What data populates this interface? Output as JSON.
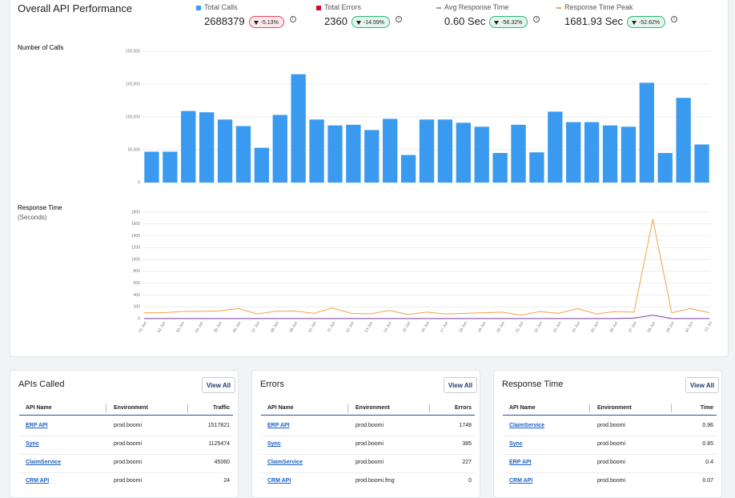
{
  "header": {
    "title": "Overall API Performance"
  },
  "kpis": [
    {
      "label": "Total Calls",
      "value": "2688379",
      "change": "-5.13%",
      "color": "#3a9af0",
      "marker": "square",
      "badge_color": "#e5485f"
    },
    {
      "label": "Total Errors",
      "value": "2360",
      "change": "-14.59%",
      "color": "#c8102e",
      "marker": "square",
      "badge_color": "#2bb673"
    },
    {
      "label": "Avg Response Time",
      "value": "0.60 Sec",
      "change": "-56.32%",
      "color": "#9a9a9a",
      "marker": "dash",
      "badge_color": "#2bb673"
    },
    {
      "label": "Response Time Peak",
      "value": "1681.93 Sec",
      "change": "-52.62%",
      "color": "#f5a04a",
      "marker": "dash",
      "badge_color": "#2bb673"
    }
  ],
  "chart_data": [
    {
      "type": "bar",
      "y_label": "Number of Calls",
      "color": "#3a9af0",
      "values": [
        47000,
        47000,
        109000,
        107000,
        96000,
        86000,
        53000,
        103000,
        165000,
        96000,
        87000,
        88000,
        80000,
        97000,
        42000,
        96000,
        96000,
        91000,
        85000,
        45000,
        88000,
        46000,
        108000,
        92000,
        92000,
        87000,
        85000,
        152000,
        45000,
        129000,
        58000
      ],
      "ylim": [
        0,
        200000
      ],
      "yticks": [
        0,
        {
          "value": 50000,
          "label": "50,000"
        },
        {
          "value": 100000,
          "label": "100,000"
        },
        {
          "value": 150000,
          "label": "150,000"
        },
        {
          "value": 200000,
          "label": "200,000"
        }
      ],
      "grid": true
    },
    {
      "type": "line",
      "y_label": "Response Time",
      "y_label_sub": "(Seconds)",
      "categories": [
        "01 Jun",
        "02 Jun",
        "03 Jun",
        "04 Jun",
        "05 Jun",
        "06 Jun",
        "07 Jun",
        "08 Jun",
        "09 Jun",
        "10 Jun",
        "11 Jun",
        "12 Jun",
        "13 Jun",
        "14 Jun",
        "15 Jun",
        "16 Jun",
        "17 Jun",
        "18 Jun",
        "19 Jun",
        "20 Jun",
        "21 Jun",
        "22 Jun",
        "23 Jun",
        "24 Jun",
        "25 Jun",
        "26 Jun",
        "27 Jun",
        "28 Jun",
        "29 Jun",
        "30 Jun",
        "01 Jul"
      ],
      "series": [
        {
          "color": "#f5a04a",
          "values": [
            100,
            100,
            120,
            125,
            130,
            170,
            80,
            125,
            130,
            90,
            180,
            90,
            80,
            140,
            70,
            110,
            80,
            90,
            100,
            110,
            60,
            120,
            90,
            170,
            80,
            120,
            110,
            1680,
            100,
            170,
            100
          ]
        },
        {
          "color": "#7b3fa0",
          "values": [
            1,
            1,
            1,
            1,
            1,
            1,
            1,
            1,
            1,
            1,
            1,
            1,
            1,
            1,
            1,
            1,
            1,
            1,
            1,
            1,
            1,
            1,
            1,
            1,
            1,
            1,
            10,
            60,
            1,
            1,
            1
          ]
        }
      ],
      "ylim": [
        0,
        1800
      ],
      "yticks": [
        0,
        200,
        400,
        600,
        800,
        1000,
        1200,
        1400,
        1600,
        1800
      ],
      "grid": true
    }
  ],
  "tables": [
    {
      "title": "APIs Called",
      "button": "View All",
      "columns": [
        "API Name",
        "Environment",
        "Traffic"
      ],
      "rows": [
        [
          "ERP API",
          "prod.boomi",
          1517821
        ],
        [
          "Sync",
          "prod.boomi",
          1125474
        ],
        [
          "ClaimService",
          "prod.boomi",
          45060
        ],
        [
          "CRM API",
          "prod.boomi",
          24
        ]
      ]
    },
    {
      "title": "Errors",
      "button": "View All",
      "columns": [
        "API Name",
        "Environment",
        "Errors"
      ],
      "rows": [
        [
          "ERP API",
          "prod.boomi",
          1748
        ],
        [
          "Sync",
          "prod.boomi",
          385
        ],
        [
          "ClaimService",
          "prod.boomi",
          227
        ],
        [
          "CRM API",
          "prod.boomi.fmg",
          0
        ]
      ]
    },
    {
      "title": "Response Time",
      "button": "View All",
      "columns": [
        "API Name",
        "Environment",
        "Time"
      ],
      "rows": [
        [
          "ClaimService",
          "prod.boomi",
          0.96
        ],
        [
          "Sync",
          "prod.boomi",
          0.85
        ],
        [
          "ERP API",
          "prod.boomi",
          0.4
        ],
        [
          "CRM API",
          "prod.boomi",
          0.07
        ]
      ]
    }
  ]
}
